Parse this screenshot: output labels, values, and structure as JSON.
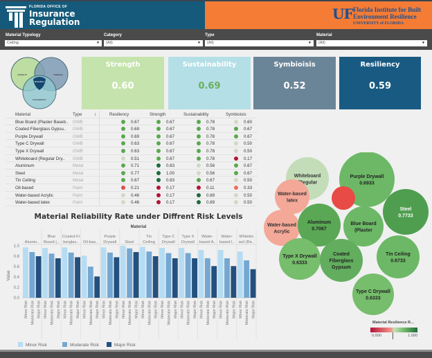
{
  "header": {
    "left_logo": {
      "line1": "FLORIDA OFFICE OF",
      "line2": "Insurance",
      "line3": "Regulation"
    },
    "right_logo": {
      "mark": "UF",
      "line1": "Florida Institute for Built",
      "line2": "Environment Resilience",
      "line3": "UNIVERSITY of FLORIDA"
    },
    "colors": {
      "left_bg": "#155a7a",
      "right_bg": "#f47c35"
    }
  },
  "filters": [
    {
      "label": "Material Typology",
      "value": "Ceiling"
    },
    {
      "label": "Category",
      "value": "(All)"
    },
    {
      "label": "Type",
      "value": "(All)"
    },
    {
      "label": "Material",
      "value": "(All)"
    }
  ],
  "venn": {
    "labels": [
      "STRENGTH",
      "SYMBIOSIS",
      "RESILIENCY",
      "SUSTAINABILITY"
    ]
  },
  "kpis": [
    {
      "title": "Strength",
      "value": "0.60",
      "bg": "#c5e4ad",
      "fg": "#ffffff"
    },
    {
      "title": "Sustainability",
      "value": "0.69",
      "bg": "#b4dfe6",
      "fg": "#6aaf5e"
    },
    {
      "title": "Symbioisis",
      "value": "0.52",
      "bg": "#6b8598",
      "fg": "#ffffff"
    },
    {
      "title": "Resiliency",
      "value": "0.59",
      "bg": "#195a82",
      "fg": "#ffffff"
    }
  ],
  "table": {
    "headers": [
      "Material",
      "Type",
      "Resiliency",
      "Strength",
      "Sustainability",
      "Symbioisis"
    ],
    "sort_icon": "sort-icon",
    "rows": [
      {
        "material": "Blue Board (Plaster Baseb..",
        "type": "GWB",
        "res": "0.67",
        "str": "0.67",
        "sus": "0.78",
        "sym": "0.60",
        "c": [
          "#5aa84f",
          "#5aa84f",
          "#5aa84f",
          "#d2d8c8"
        ]
      },
      {
        "material": "Coated Fiberglass Gypsu..",
        "type": "GWB",
        "res": "0.69",
        "str": "0.67",
        "sus": "0.78",
        "sym": "0.67",
        "c": [
          "#5aa84f",
          "#5aa84f",
          "#5aa84f",
          "#5aa84f"
        ]
      },
      {
        "material": "Purple Drywall",
        "type": "GWB",
        "res": "0.69",
        "str": "0.67",
        "sus": "0.78",
        "sym": "0.67",
        "c": [
          "#5aa84f",
          "#5aa84f",
          "#5aa84f",
          "#5aa84f"
        ]
      },
      {
        "material": "Type C Drywall",
        "type": "GWB",
        "res": "0.63",
        "str": "0.67",
        "sus": "0.78",
        "sym": "0.50",
        "c": [
          "#5aa84f",
          "#5aa84f",
          "#5aa84f",
          "#d2d8c8"
        ]
      },
      {
        "material": "Type X Drywall",
        "type": "GWB",
        "res": "0.63",
        "str": "0.67",
        "sus": "0.78",
        "sym": "0.50",
        "c": [
          "#5aa84f",
          "#5aa84f",
          "#5aa84f",
          "#d2d8c8"
        ]
      },
      {
        "material": "Whiteboard (Regular Dry..",
        "type": "GWB",
        "res": "0.51",
        "str": "0.67",
        "sus": "0.78",
        "sym": "0.17",
        "c": [
          "#d2d8c8",
          "#5aa84f",
          "#5aa84f",
          "#b5123a"
        ]
      },
      {
        "material": "Aluminum",
        "type": "Metal",
        "res": "0.71",
        "str": "0.83",
        "sus": "0.56",
        "sym": "0.67",
        "c": [
          "#5aa84f",
          "#1e6b3a",
          "#d2d8c8",
          "#5aa84f"
        ]
      },
      {
        "material": "Steel",
        "type": "Metal",
        "res": "0.77",
        "str": "1.00",
        "sus": "0.56",
        "sym": "0.67",
        "c": [
          "#5aa84f",
          "#1e6b3a",
          "#d2d8c8",
          "#5aa84f"
        ]
      },
      {
        "material": "Tin Ceiling",
        "type": "Metal",
        "res": "0.67",
        "str": "0.83",
        "sus": "0.67",
        "sym": "0.50",
        "c": [
          "#5aa84f",
          "#1e6b3a",
          "#5aa84f",
          "#d2d8c8"
        ]
      },
      {
        "material": "Oil-based",
        "type": "Paint",
        "res": "0.21",
        "str": "0.17",
        "sus": "0.11",
        "sym": "0.33",
        "c": [
          "#e0504a",
          "#b5123a",
          "#b5123a",
          "#ec705c"
        ]
      },
      {
        "material": "Water-based Acrylic",
        "type": "Paint",
        "res": "0.46",
        "str": "0.17",
        "sus": "0.89",
        "sym": "0.50",
        "c": [
          "#d2d8c8",
          "#b5123a",
          "#1e6b3a",
          "#d2d8c8"
        ]
      },
      {
        "material": "Water-based latex",
        "type": "Paint",
        "res": "0.46",
        "str": "0.17",
        "sus": "0.89",
        "sym": "0.50",
        "c": [
          "#d2d8c8",
          "#b5123a",
          "#1e6b3a",
          "#d2d8c8"
        ]
      }
    ]
  },
  "bubbles": {
    "items": [
      {
        "label": [
          "Whiteboard",
          "(Regular"
        ],
        "value": 0.5133,
        "color": "#c3ddb8",
        "text": "#333"
      },
      {
        "label": [
          "Purple Drywall",
          "0.6933"
        ],
        "value": 0.6933,
        "color": "#6cb866",
        "text": "#222"
      },
      {
        "label": [
          "Water-based",
          "latex"
        ],
        "value": 0.46,
        "color": "#f4a898",
        "text": "#333"
      },
      {
        "label": [],
        "value": 0.21,
        "color": "#e84a45",
        "text": "#fff"
      },
      {
        "label": [
          "Steel",
          "0.7733"
        ],
        "value": 0.7733,
        "color": "#4f9e4f",
        "text": "#fff"
      },
      {
        "label": [
          "Water-based",
          "Acrylic"
        ],
        "value": 0.46,
        "color": "#f4a898",
        "text": "#333"
      },
      {
        "label": [
          "Aluminum",
          "0.7067"
        ],
        "value": 0.7067,
        "color": "#5aa855",
        "text": "#222"
      },
      {
        "label": [
          "Blue Board",
          "(Plaster"
        ],
        "value": 0.67,
        "color": "#6cb866",
        "text": "#222"
      },
      {
        "label": [
          "Tin Ceiling",
          "0.6733"
        ],
        "value": 0.6733,
        "color": "#6cb866",
        "text": "#222"
      },
      {
        "label": [
          "Type X Drywall",
          "0.6333"
        ],
        "value": 0.6333,
        "color": "#76bd6c",
        "text": "#222"
      },
      {
        "label": [
          "Coated",
          "Fiberglass",
          "Gypsum"
        ],
        "value": 0.69,
        "color": "#62ae5e",
        "text": "#222"
      },
      {
        "label": [
          "Type C Drywall",
          "0.6333"
        ],
        "value": 0.6333,
        "color": "#76bd6c",
        "text": "#222"
      }
    ],
    "legend": {
      "title": "Material Resilience R...",
      "min": "0.000",
      "max": "1.000"
    }
  },
  "chart_data": {
    "type": "bar",
    "title": "Material Reliability Rate under Diffrent Risk Levels",
    "column_header": "Material",
    "ylabel": "Value",
    "ylim": [
      0,
      1.0
    ],
    "yticks": [
      "0.0",
      "0.2",
      "0.4",
      "0.6",
      "0.8",
      "1.0"
    ],
    "categories": [
      [
        "Alumin.."
      ],
      [
        "Blue",
        "Board (.."
      ],
      [
        "Coated Fi",
        "berglas.."
      ],
      [
        "Oil-bas.."
      ],
      [
        "Purple",
        "Drywall"
      ],
      [
        "Steel"
      ],
      [
        "Tin",
        "Ceiling"
      ],
      [
        "Type C",
        "Drywall"
      ],
      [
        "Type X",
        "Drywall"
      ],
      [
        "Water-",
        "based A.."
      ],
      [
        "Water-",
        "based l.."
      ],
      [
        "Whitebo",
        "ard (Re.."
      ]
    ],
    "sub_labels": [
      "Minor Risk",
      "Moderate Risk",
      "Major Risk"
    ],
    "series": [
      {
        "name": "Minor Risk",
        "color": "#b5dcf2",
        "values": [
          0.97,
          0.96,
          0.97,
          0.81,
          0.97,
          1.0,
          0.98,
          0.96,
          0.96,
          0.92,
          0.92,
          0.89
        ]
      },
      {
        "name": "Moderate Risk",
        "color": "#74a8d2",
        "values": [
          0.88,
          0.85,
          0.87,
          0.6,
          0.87,
          0.95,
          0.89,
          0.86,
          0.86,
          0.76,
          0.76,
          0.72
        ]
      },
      {
        "name": "Major Risk",
        "color": "#23507e",
        "values": [
          0.8,
          0.76,
          0.78,
          0.41,
          0.78,
          0.88,
          0.8,
          0.76,
          0.76,
          0.61,
          0.61,
          0.55
        ]
      }
    ],
    "legend": [
      "Minor Risk",
      "Moderate Risk",
      "Major Risk"
    ],
    "legend_position": "bottom"
  }
}
